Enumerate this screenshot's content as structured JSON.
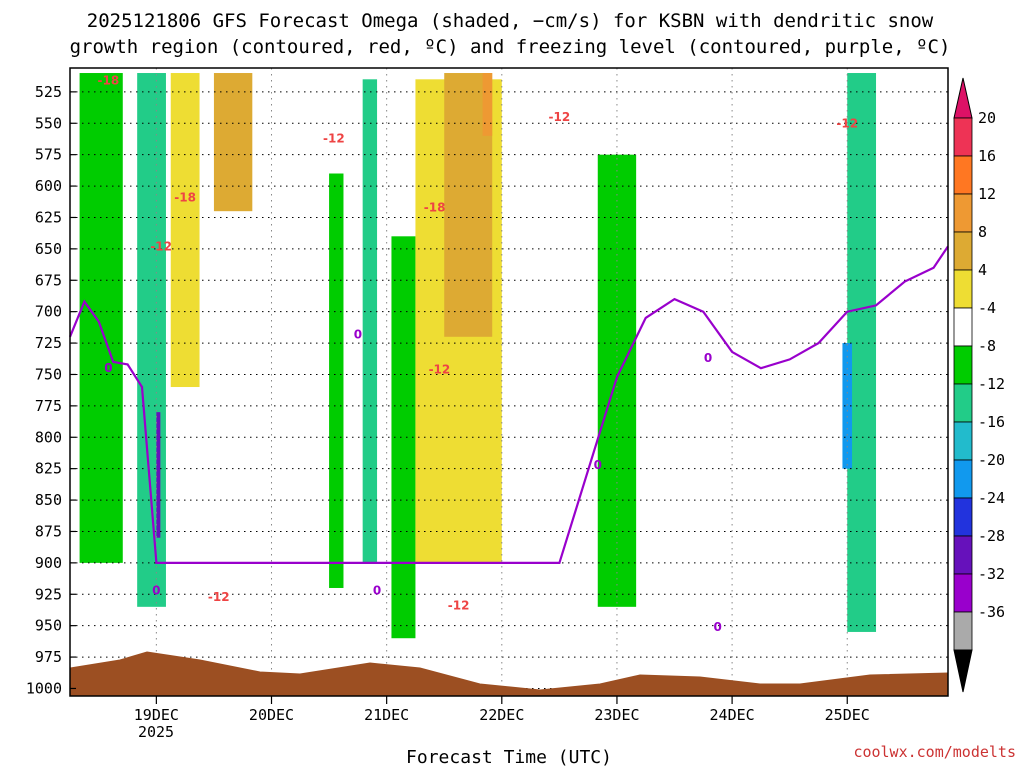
{
  "chart_data": {
    "type": "heatmap",
    "title_line1": "2025121806 GFS Forecast Omega (shaded, −cm/s) for KSBN with dendritic snow",
    "title_line2": "growth region (contoured, red, ºC) and freezing level (contoured, purple, ºC)",
    "xlabel": "Forecast Time (UTC)",
    "credit": "coolwx.com/modelts",
    "x_ticks": [
      "19DEC",
      "20DEC",
      "21DEC",
      "22DEC",
      "23DEC",
      "24DEC",
      "25DEC"
    ],
    "x_year": "2025",
    "x_range": [
      "2025-12-18T06",
      "2025-12-25T21"
    ],
    "y_ticks": [
      "525",
      "550",
      "575",
      "600",
      "625",
      "650",
      "675",
      "700",
      "725",
      "750",
      "775",
      "800",
      "825",
      "850",
      "875",
      "900",
      "925",
      "950",
      "975",
      "1000"
    ],
    "y_range": [
      506,
      1006
    ],
    "y_unit": "hPa",
    "grid": true,
    "colorbar": {
      "ticks": [
        "20",
        "16",
        "12",
        "8",
        "4",
        "-4",
        "-8",
        "-12",
        "-16",
        "-20",
        "-24",
        "-28",
        "-32",
        "-36"
      ],
      "colors": [
        "#ee3355",
        "#ff7722",
        "#ee9933",
        "#ddaa33",
        "#eedd33",
        "#ffffff",
        "#00cc00",
        "#22cc88",
        "#22bbcc",
        "#1199ee",
        "#2233dd",
        "#6611bb",
        "#9900cc",
        "#aaaaaa"
      ],
      "top_arrow": "#dd1166",
      "bottom_arrow": "#000000"
    },
    "colors": {
      "dgz_contour": "#ee4444",
      "freezing_contour": "#9900cc",
      "terrain": "#9c4f22"
    },
    "contour_labels": [
      {
        "text": "-18",
        "series": "dgz",
        "time": "2025-12-18T14",
        "p": 516
      },
      {
        "text": "-12",
        "series": "dgz",
        "time": "2025-12-20T13",
        "p": 562
      },
      {
        "text": "-18",
        "series": "dgz",
        "time": "2025-12-19T06",
        "p": 609
      },
      {
        "text": "-12",
        "series": "dgz",
        "time": "2025-12-19T01",
        "p": 648
      },
      {
        "text": "-18",
        "series": "dgz",
        "time": "2025-12-21T10",
        "p": 617
      },
      {
        "text": "-12",
        "series": "dgz",
        "time": "2025-12-21T11",
        "p": 746
      },
      {
        "text": "-12",
        "series": "dgz",
        "time": "2025-12-19T13",
        "p": 927
      },
      {
        "text": "-12",
        "series": "dgz",
        "time": "2025-12-21T15",
        "p": 934
      },
      {
        "text": "-12",
        "series": "dgz",
        "time": "2025-12-22T12",
        "p": 545
      },
      {
        "text": "-12",
        "series": "dgz",
        "time": "2025-12-25T00",
        "p": 550
      },
      {
        "text": "0",
        "series": "freezing",
        "time": "2025-12-18T14",
        "p": 745
      },
      {
        "text": "0",
        "series": "freezing",
        "time": "2025-12-20T18",
        "p": 718
      },
      {
        "text": "0",
        "series": "freezing",
        "time": "2025-12-19T00",
        "p": 922
      },
      {
        "text": "0",
        "series": "freezing",
        "time": "2025-12-20T22",
        "p": 922
      },
      {
        "text": "0",
        "series": "freezing",
        "time": "2025-12-22T20",
        "p": 822
      },
      {
        "text": "0",
        "series": "freezing",
        "time": "2025-12-23T19",
        "p": 737
      },
      {
        "text": "0",
        "series": "freezing",
        "time": "2025-12-23T21",
        "p": 951
      }
    ],
    "freezing_level_series": {
      "times": [
        "2025-12-18T06",
        "2025-12-18T09",
        "2025-12-18T12",
        "2025-12-18T15",
        "2025-12-18T18",
        "2025-12-18T21",
        "2025-12-19T00",
        "2025-12-22T12",
        "2025-12-23T00",
        "2025-12-23T06",
        "2025-12-23T12",
        "2025-12-23T18",
        "2025-12-24T00",
        "2025-12-24T06",
        "2025-12-24T12",
        "2025-12-24T18",
        "2025-12-25T00",
        "2025-12-25T06",
        "2025-12-25T12",
        "2025-12-25T18",
        "2025-12-25T21"
      ],
      "values": [
        720,
        692,
        708,
        740,
        742,
        760,
        900,
        900,
        752,
        705,
        690,
        700,
        732,
        745,
        738,
        725,
        700,
        695,
        676,
        665,
        648
      ]
    },
    "omega_regions": [
      {
        "t0": "2025-12-18T08",
        "t1": "2025-12-18T17",
        "p0": 510,
        "p1": 900,
        "omega": -8
      },
      {
        "t0": "2025-12-18T20",
        "t1": "2025-12-19T02",
        "p0": 510,
        "p1": 935,
        "omega": -12
      },
      {
        "t0": "2025-12-19T00",
        "t1": "2025-12-19T00",
        "p0": 780,
        "p1": 880,
        "omega": -28
      },
      {
        "t0": "2025-12-19T03",
        "t1": "2025-12-19T09",
        "p0": 510,
        "p1": 760,
        "omega": 4
      },
      {
        "t0": "2025-12-19T12",
        "t1": "2025-12-19T20",
        "p0": 510,
        "p1": 620,
        "omega": 8
      },
      {
        "t0": "2025-12-20T12",
        "t1": "2025-12-20T15",
        "p0": 590,
        "p1": 920,
        "omega": -8
      },
      {
        "t0": "2025-12-20T19",
        "t1": "2025-12-20T22",
        "p0": 515,
        "p1": 900,
        "omega": -12
      },
      {
        "t0": "2025-12-21T01",
        "t1": "2025-12-21T06",
        "p0": 640,
        "p1": 960,
        "omega": -8
      },
      {
        "t0": "2025-12-21T06",
        "t1": "2025-12-22T00",
        "p0": 515,
        "p1": 900,
        "omega": 4
      },
      {
        "t0": "2025-12-21T12",
        "t1": "2025-12-21T22",
        "p0": 510,
        "p1": 720,
        "omega": 8
      },
      {
        "t0": "2025-12-21T20",
        "t1": "2025-12-21T22",
        "p0": 510,
        "p1": 560,
        "omega": 12
      },
      {
        "t0": "2025-12-22T20",
        "t1": "2025-12-23T04",
        "p0": 575,
        "p1": 935,
        "omega": -8
      },
      {
        "t0": "2025-12-25T00",
        "t1": "2025-12-25T06",
        "p0": 510,
        "p1": 955,
        "omega": -12
      },
      {
        "t0": "2025-12-24T23",
        "t1": "2025-12-25T01",
        "p0": 725,
        "p1": 825,
        "omega": -20
      }
    ]
  }
}
